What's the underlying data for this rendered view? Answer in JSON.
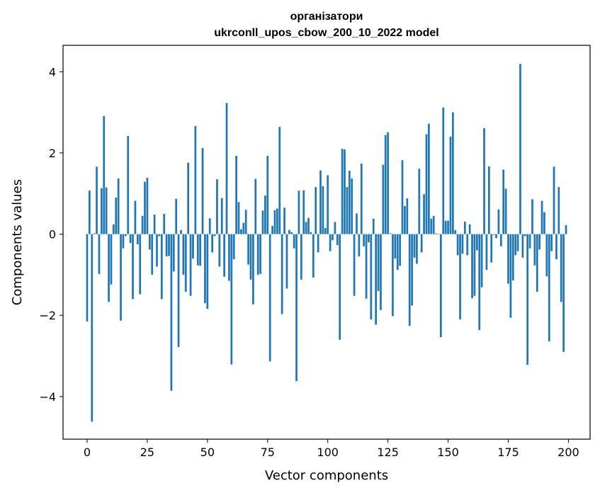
{
  "chart_data": {
    "type": "bar",
    "title": "організатори",
    "subtitle": "ukrconll_upos_cbow_200_10_2022 model",
    "xlabel": "Vector components",
    "ylabel": "Components values",
    "xlim": [
      -10,
      209
    ],
    "ylim": [
      -5.05,
      4.65
    ],
    "xticks": [
      0,
      25,
      50,
      75,
      100,
      125,
      150,
      175,
      200
    ],
    "yticks": [
      -4,
      -2,
      0,
      2,
      4
    ],
    "ytick_labels": [
      "−4",
      "−2",
      "0",
      "2",
      "4"
    ],
    "grid": false,
    "bar_color": "#1f77b4",
    "values": [
      -2.15,
      1.07,
      -4.62,
      0.02,
      1.66,
      -0.98,
      1.13,
      2.91,
      1.15,
      -1.67,
      -1.24,
      0.24,
      0.9,
      1.37,
      -2.13,
      -0.35,
      -0.05,
      2.42,
      -0.22,
      -1.6,
      0.82,
      -0.25,
      -1.48,
      0.45,
      1.29,
      1.39,
      -0.38,
      -1.0,
      0.48,
      -0.8,
      -0.05,
      -1.6,
      0.5,
      -0.55,
      -0.54,
      -3.86,
      -0.92,
      0.87,
      -2.78,
      0.1,
      -1.0,
      -1.42,
      1.76,
      -1.52,
      -0.6,
      2.66,
      -0.77,
      -0.78,
      2.12,
      -1.7,
      -1.84,
      0.39,
      -0.45,
      -0.05,
      1.35,
      -0.8,
      0.89,
      -1.05,
      3.23,
      -1.15,
      -3.21,
      -0.62,
      1.93,
      0.79,
      0.12,
      0.28,
      0.6,
      -0.75,
      -1.12,
      -1.73,
      1.36,
      -1.0,
      -0.98,
      0.58,
      0.95,
      1.93,
      -3.13,
      0.2,
      0.59,
      0.63,
      2.64,
      -1.97,
      0.65,
      -1.34,
      0.1,
      0.05,
      -0.35,
      -3.62,
      1.07,
      -1.12,
      1.08,
      0.3,
      0.4,
      0.05,
      -1.07,
      1.16,
      -0.45,
      1.57,
      1.18,
      0.15,
      1.45,
      -0.42,
      -0.15,
      0.3,
      -0.27,
      -2.6,
      2.1,
      2.09,
      1.16,
      1.56,
      1.37,
      -1.52,
      0.51,
      -0.55,
      1.74,
      -0.3,
      -1.59,
      -0.2,
      -2.1,
      0.38,
      -2.23,
      -1.4,
      -1.87,
      1.71,
      2.44,
      2.51,
      0.02,
      -2.02,
      -0.6,
      -0.88,
      -0.78,
      1.82,
      0.69,
      0.88,
      -2.26,
      -1.76,
      -0.58,
      -0.73,
      1.61,
      -0.45,
      0.98,
      2.46,
      2.72,
      0.38,
      0.45,
      0.02,
      -0.01,
      -2.54,
      3.12,
      0.33,
      0.33,
      2.4,
      3.0,
      0.1,
      -0.52,
      -2.1,
      -0.48,
      0.31,
      -0.52,
      0.24,
      -1.58,
      -1.52,
      -0.4,
      -2.36,
      -1.31,
      2.61,
      -0.88,
      1.67,
      -0.7,
      -0.02,
      -0.1,
      0.61,
      -0.3,
      1.59,
      1.12,
      -1.22,
      -2.06,
      -1.14,
      -0.52,
      -0.42,
      4.19,
      -0.58,
      -0.05,
      -3.22,
      -0.35,
      0.86,
      -0.77,
      -1.42,
      -0.38,
      0.82,
      0.54,
      -1.04,
      -2.64,
      -0.42,
      1.66,
      -0.62,
      1.16,
      -1.67,
      -2.9,
      0.22
    ]
  }
}
